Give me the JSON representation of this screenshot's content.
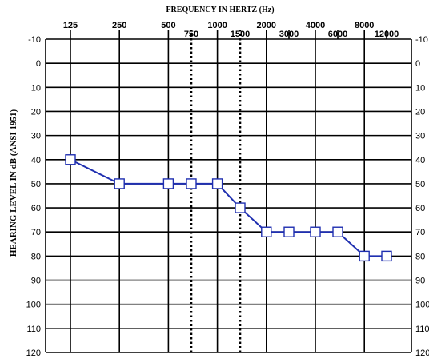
{
  "chart_data": {
    "type": "line",
    "title": "FREQUENCY IN HERTZ (Hz)",
    "xlabel": "FREQUENCY IN HERTZ (Hz)",
    "ylabel": "HEARING LEVEL IN dB (ANSI 1951)",
    "x_ticks_upper": [
      "125",
      "250",
      "500",
      "1000",
      "2000",
      "4000",
      "8000"
    ],
    "x_ticks_lower": [
      "750",
      "1500",
      "3000",
      "6000",
      "12000"
    ],
    "y_ticks": [
      -10,
      0,
      10,
      20,
      30,
      40,
      50,
      60,
      70,
      80,
      90,
      100,
      110,
      120
    ],
    "ylim": [
      -10,
      120
    ],
    "y_inverted": true,
    "grid": true,
    "dotted_verticals": [
      "750",
      "1500"
    ],
    "marker": "square",
    "line_color": "#1f2fb0",
    "series": [
      {
        "x": [
          "125",
          "250",
          "500",
          "750",
          "1000",
          "1500",
          "2000",
          "3000",
          "4000",
          "6000",
          "8000",
          "12000"
        ],
        "values": [
          40,
          50,
          50,
          50,
          50,
          60,
          70,
          70,
          70,
          70,
          80,
          80
        ]
      }
    ]
  }
}
